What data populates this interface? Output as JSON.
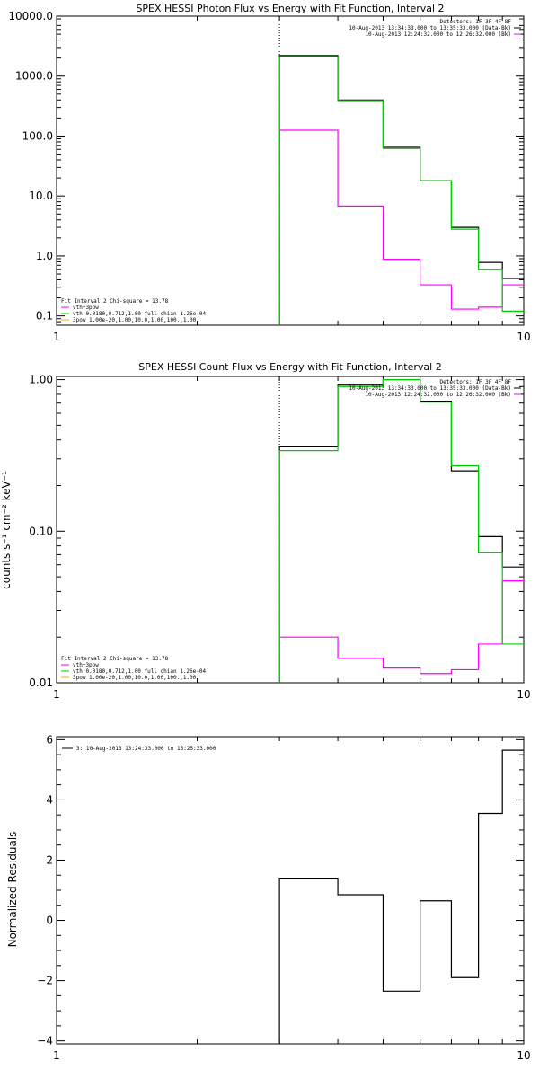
{
  "chart_data": [
    {
      "type": "line",
      "title": "SPEX HESSI Photon Flux vs Energy with Fit Function, Interval 2",
      "ylabel": "",
      "xscale": "log",
      "yscale": "log",
      "xlim": [
        1,
        10
      ],
      "ylim": [
        0.07,
        10000
      ],
      "x_ticks": [
        "1",
        "10"
      ],
      "y_ticks": [
        {
          "value": 10000,
          "label": "10000.0"
        },
        {
          "value": 1000,
          "label": "1000.0"
        },
        {
          "value": 100,
          "label": "100.0"
        },
        {
          "value": 10,
          "label": "10.0"
        },
        {
          "value": 1,
          "label": "1.0"
        },
        {
          "value": 0.1,
          "label": "0.1"
        }
      ],
      "marker_x": 3.0,
      "x_edges": [
        3.0,
        4.0,
        5.0,
        6.0,
        7.0,
        8.0,
        9.0,
        10.0
      ],
      "series": [
        {
          "color": "#000000",
          "values": [
            2200,
            400,
            65,
            18,
            3.0,
            0.78,
            0.42
          ]
        },
        {
          "color": "#ff00ff",
          "values": [
            125,
            6.8,
            0.88,
            0.33,
            0.13,
            0.14,
            0.33
          ]
        },
        {
          "color": "#00cc00",
          "values": [
            2100,
            390,
            62,
            18,
            2.8,
            0.6,
            0.12
          ]
        }
      ],
      "legend_top": [
        {
          "text": "Detectors: 1F 3F 4F 8F",
          "color": ""
        },
        {
          "text": "10-Aug-2013 13:34:33.000 to 13:35:33.000 (Data-Bk)",
          "color": "#000000"
        },
        {
          "text": "10-Aug-2013 12:24:32.000 to 12:26:32.000 (Bk)",
          "color": "#ff00ff"
        }
      ],
      "legend_bottom": [
        {
          "text": "Fit Interval 2   Chi-square = 13.78",
          "color": ""
        },
        {
          "text": "vth+3pow",
          "color": "#ff00ff"
        },
        {
          "text": "vth 0.0180,0.712,1.00  full chian 1.26e-04",
          "color": "#00cc00"
        },
        {
          "text": "3pow 1.00e-20,1.00,10.0,1.00,100.,1.00",
          "color": "#ffa500"
        }
      ]
    },
    {
      "type": "line",
      "title": "SPEX HESSI Count Flux vs Energy with Fit Function, Interval 2",
      "ylabel": "counts s⁻¹ cm⁻² keV⁻¹",
      "xscale": "log",
      "yscale": "log",
      "xlim": [
        1,
        10
      ],
      "ylim": [
        0.01,
        1.05
      ],
      "x_ticks": [
        "1",
        "10"
      ],
      "y_ticks": [
        {
          "value": 1.0,
          "label": "1.00"
        },
        {
          "value": 0.1,
          "label": "0.10"
        },
        {
          "value": 0.01,
          "label": "0.01"
        }
      ],
      "marker_x": 3.0,
      "x_edges": [
        3.0,
        4.0,
        5.0,
        6.0,
        7.0,
        8.0,
        9.0,
        10.0
      ],
      "series": [
        {
          "color": "#000000",
          "values": [
            0.36,
            0.92,
            1.0,
            0.72,
            0.25,
            0.092,
            0.058
          ]
        },
        {
          "color": "#ff00ff",
          "values": [
            0.02,
            0.0145,
            0.0125,
            0.0115,
            0.0122,
            0.018,
            0.047
          ]
        },
        {
          "color": "#00cc00",
          "values": [
            0.34,
            0.9,
            1.0,
            0.71,
            0.27,
            0.072,
            0.018
          ]
        }
      ],
      "legend_top": [
        {
          "text": "Detectors: 1F 3F 4F 8F",
          "color": ""
        },
        {
          "text": "10-Aug-2013 13:34:33.000 to 13:35:33.000 (Data-Bk)",
          "color": "#000000"
        },
        {
          "text": "10-Aug-2013 12:24:32.000 to 12:26:32.000 (Bk)",
          "color": "#ff00ff"
        }
      ],
      "legend_bottom": [
        {
          "text": "Fit Interval 2   Chi-square = 13.78",
          "color": ""
        },
        {
          "text": "vth+3pow",
          "color": "#ff00ff"
        },
        {
          "text": "vth 0.0180,0.712,1.00  full chian 1.26e-04",
          "color": "#00cc00"
        },
        {
          "text": "3pow 1.00e-20,1.00,10.0,1.00,100.,1.00",
          "color": "#ffa500"
        }
      ]
    },
    {
      "type": "line",
      "title": "",
      "ylabel": "Normalized Residuals",
      "xscale": "log",
      "yscale": "linear",
      "xlim": [
        1,
        10
      ],
      "ylim": [
        -4.1,
        6.1
      ],
      "x_ticks": [
        "1",
        "10"
      ],
      "y_ticks": [
        {
          "value": 6,
          "label": "6"
        },
        {
          "value": 4,
          "label": "4"
        },
        {
          "value": 2,
          "label": "2"
        },
        {
          "value": 0,
          "label": "0"
        },
        {
          "value": -2,
          "label": "−2"
        },
        {
          "value": -4,
          "label": "−4"
        }
      ],
      "x_edges": [
        3.0,
        4.0,
        5.0,
        6.0,
        7.0,
        8.0,
        9.0,
        10.0
      ],
      "series": [
        {
          "color": "#000000",
          "values": [
            1.4,
            0.85,
            -2.35,
            0.65,
            -1.9,
            3.55,
            5.65
          ]
        }
      ],
      "legend_top_left": [
        {
          "text": "3: 10-Aug-2013 13:24:33.000 to 13:25:33.000",
          "color": "#000000"
        }
      ]
    }
  ]
}
